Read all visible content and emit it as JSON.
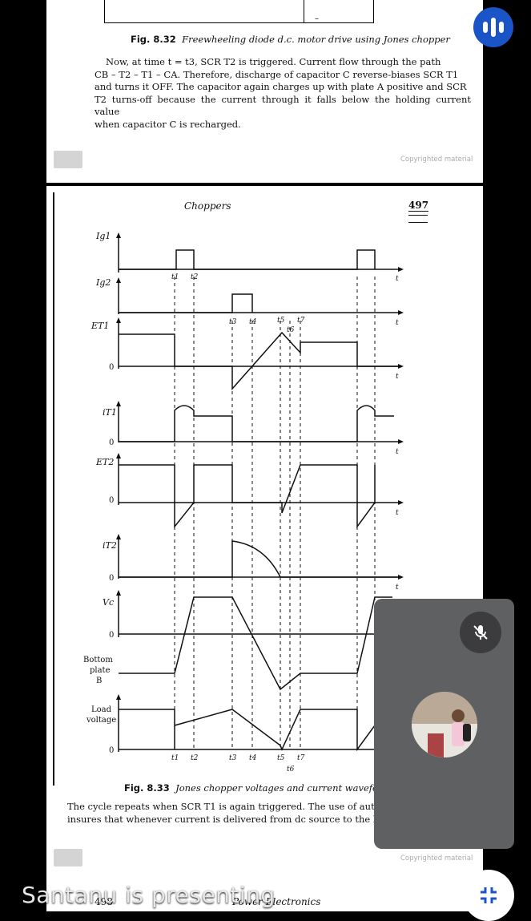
{
  "top_page": {
    "fig_caption_label": "Fig. 8.32",
    "fig_caption_title": "Freewheeling diode d.c. motor drive using Jones chopper",
    "paragraph_lines": [
      "Now, at time t = t3, SCR T2 is triggered. Current flow through the path",
      "CB – T2 – T1 – CA. Therefore, discharge of capacitor C reverse-biases SCR T1",
      "and turns it OFF. The capacitor again charges up with plate A positive and SCR",
      "T2 turns-off because the current through it falls below the holding current value",
      "when capacitor C is recharged."
    ],
    "copyright": "Copyrighted material"
  },
  "main_page": {
    "running_head": "Choppers",
    "page_number": "497",
    "waveform_labels": [
      "Ig1",
      "Ig2",
      "ET1",
      "iT1",
      "ET2",
      "iT2",
      "Vc",
      "Bottom plate B",
      "Load voltage"
    ],
    "zero_label": "0",
    "axis_t": "t",
    "time_ticks_top": [
      "t1",
      "t2"
    ],
    "time_ticks_mid": [
      "t3",
      "t4",
      "t5",
      "t6",
      "t7"
    ],
    "time_ticks_bottom": [
      "t1",
      "t2",
      "t3",
      "t4",
      "t5",
      "t6",
      "t7"
    ],
    "fig_caption_label": "Fig. 8.33",
    "fig_caption_title": "Jones chopper voltages and current waveforms",
    "bottom_line_1": "The cycle repeats when SCR T1 is again triggered. The use of aut",
    "bottom_line_2": "insures that whenever current is delivered from dc source to the lo",
    "copyright": "Copyrighted material",
    "footer_page_num": "498",
    "footer_title": "Power Electronics"
  },
  "meeting": {
    "presenting_text": "Santanu is presenting",
    "mic_state": "muted",
    "record_icon": "audio-bars-icon",
    "collapse_icon": "collapse-icon",
    "accent_color": "#1a54c7"
  }
}
